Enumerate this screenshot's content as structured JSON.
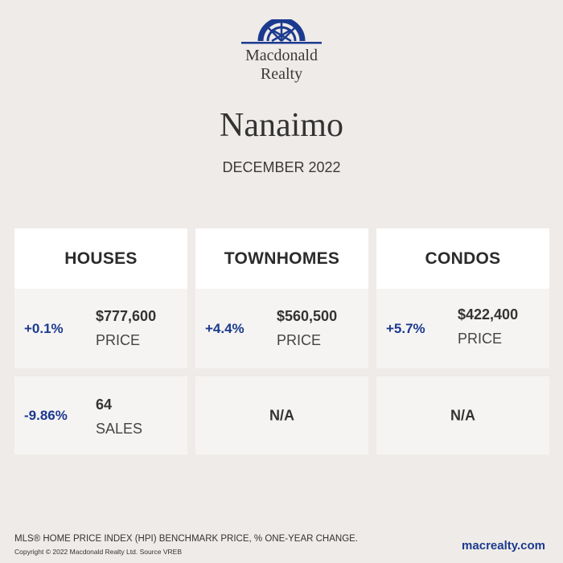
{
  "brand": {
    "line1": "Macdonald",
    "line2": "Realty",
    "logo_icon": "compass-arch-icon",
    "color": "#1b3a8f"
  },
  "city": "Nanaimo",
  "date": "DECEMBER 2022",
  "columns": [
    {
      "header": "HOUSES",
      "price": {
        "change": "+0.1%",
        "value": "$777,600",
        "label": "PRICE"
      },
      "sales": {
        "change": "-9.86%",
        "value": "64",
        "label": "SALES"
      }
    },
    {
      "header": "TOWNHOMES",
      "price": {
        "change": "+4.4%",
        "value": "$560,500",
        "label": "PRICE"
      },
      "sales": {
        "na": "N/A"
      }
    },
    {
      "header": "CONDOS",
      "price": {
        "change": "+5.7%",
        "value": "$422,400",
        "label": "PRICE"
      },
      "sales": {
        "na": "N/A"
      }
    }
  ],
  "footer": {
    "disclaimer": "MLS® HOME PRICE INDEX (HPI) BENCHMARK PRICE, % ONE-YEAR CHANGE.",
    "copyright": "Copyright © 2022 Macdonald Realty Ltd. Source VREB",
    "website": "macrealty.com"
  }
}
